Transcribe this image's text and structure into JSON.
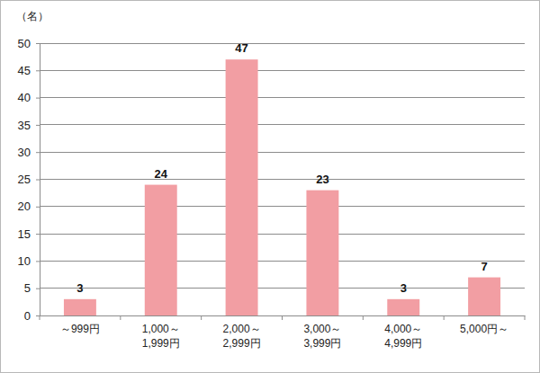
{
  "chart_data": {
    "type": "bar",
    "y_label": "（名）",
    "categories": [
      "～999円",
      "1,000～\n1,999円",
      "2,000～\n2,999円",
      "3,000～\n3,999円",
      "4,000～\n4,999円",
      "5,000円～"
    ],
    "values": [
      3,
      24,
      47,
      23,
      3,
      7
    ],
    "color": "#f29ea3",
    "ylim": [
      0,
      50
    ],
    "yticks": [
      0,
      5,
      10,
      15,
      20,
      25,
      30,
      35,
      40,
      45,
      50
    ],
    "grid": true,
    "data_labels": true
  }
}
